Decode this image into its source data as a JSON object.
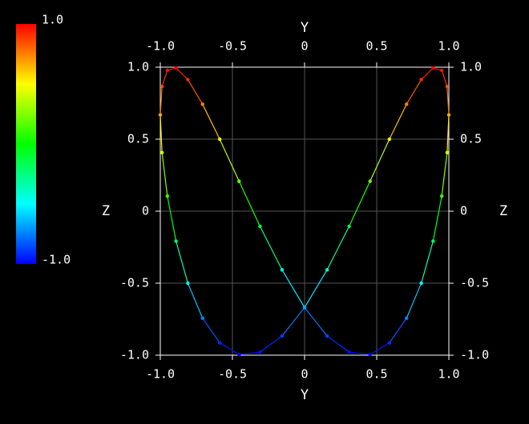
{
  "chart_data": {
    "type": "line",
    "xlabel": "Y",
    "ylabel": "Z",
    "x": [
      0,
      0.156,
      0.309,
      0.454,
      0.588,
      0.707,
      0.809,
      0.891,
      0.951,
      0.988,
      1.0,
      0.988,
      0.951,
      0.891,
      0.809,
      0.707,
      0.588,
      0.454,
      0.309,
      0.156,
      0,
      -0.156,
      -0.309,
      -0.454,
      -0.588,
      -0.707,
      -0.809,
      -0.891,
      -0.951,
      -0.988,
      -1.0,
      -0.988,
      -0.951,
      -0.891,
      -0.809,
      -0.707,
      -0.588,
      -0.454,
      -0.309,
      -0.156,
      0
    ],
    "series": [
      {
        "values": [
          -0.669,
          -0.866,
          -0.978,
          -0.995,
          -0.914,
          -0.743,
          -0.5,
          -0.208,
          0.105,
          0.407,
          0.669,
          0.866,
          0.978,
          0.995,
          0.914,
          0.743,
          0.5,
          0.208,
          -0.105,
          -0.407,
          -0.669,
          -0.866,
          -0.978,
          -0.995,
          -0.914,
          -0.743,
          -0.5,
          -0.208,
          0.105,
          0.407,
          0.669,
          0.866,
          0.978,
          0.995,
          0.914,
          0.743,
          0.5,
          0.208,
          -0.105,
          -0.407,
          -0.669
        ]
      }
    ],
    "xlim": [
      -1,
      1
    ],
    "ylim": [
      -1,
      1
    ],
    "xticks": [
      {
        "value": -1,
        "label": "-1.0"
      },
      -0.5,
      0,
      0.5,
      {
        "value": 1,
        "label": "1.0"
      }
    ],
    "yticks": [
      {
        "value": -1,
        "label": "-1.0"
      },
      -0.5,
      0,
      0.5,
      {
        "value": 1,
        "label": "1.0"
      }
    ],
    "grid": true,
    "colormap": [
      "#0000ff",
      "#00ffff",
      "#00ff00",
      "#ffff00",
      "#ff0000"
    ],
    "clim": [
      -1,
      1
    ],
    "cticks": [
      {
        "value": 1,
        "label": "1.0"
      },
      {
        "value": -1,
        "label": "-1.0"
      }
    ]
  }
}
